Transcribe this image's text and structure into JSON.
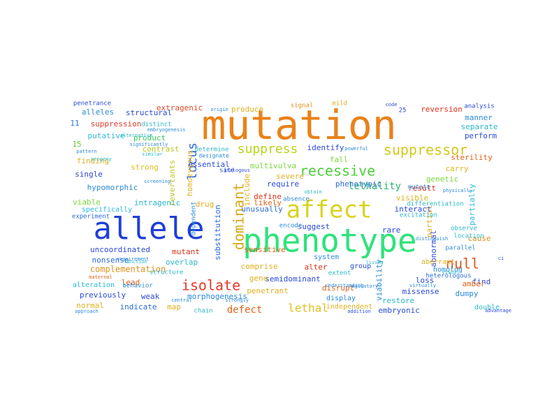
{
  "words": [
    {
      "text": "mutation",
      "color": "#e8821a"
    },
    {
      "text": "phenotype",
      "color": "#2ee37a"
    },
    {
      "text": "allele",
      "color": "#1f3fd8"
    },
    {
      "text": "affect",
      "color": "#d8d41a"
    },
    {
      "text": "suppressor",
      "color": "#d4c81a"
    },
    {
      "text": "suppress",
      "color": "#b8d41a"
    },
    {
      "text": "recessive",
      "color": "#4dcf3a"
    },
    {
      "text": "null",
      "color": "#e0561a"
    },
    {
      "text": "isolate",
      "color": "#e23a2a"
    },
    {
      "text": "dominant",
      "color": "#d8a81a"
    },
    {
      "text": "lethal",
      "color": "#e0c020"
    },
    {
      "text": "locus",
      "color": "#2a6ad8"
    },
    {
      "text": "lethality",
      "color": "#2ab56a"
    },
    {
      "text": "defect",
      "color": "#e0621a"
    },
    {
      "text": "complementation",
      "color": "#e0901a"
    },
    {
      "text": "suppression",
      "color": "#e03a2a"
    },
    {
      "text": "extragenic",
      "color": "#e04a2a"
    },
    {
      "text": "produce",
      "color": "#e0b020"
    },
    {
      "text": "reversion",
      "color": "#e0301a"
    },
    {
      "text": "structural",
      "color": "#2a4ad8"
    },
    {
      "text": "alleles",
      "color": "#2a8ad8"
    },
    {
      "text": "11",
      "color": "#2a7ad8"
    },
    {
      "text": "putative",
      "color": "#2ab8e0"
    },
    {
      "text": "product",
      "color": "#3ac85a"
    },
    {
      "text": "15",
      "color": "#6ac83a"
    },
    {
      "text": "contrast",
      "color": "#b8c820"
    },
    {
      "text": "finding",
      "color": "#e0b020"
    },
    {
      "text": "strong",
      "color": "#d8c020"
    },
    {
      "text": "single",
      "color": "#2a4ad8"
    },
    {
      "text": "hypomorphic",
      "color": "#2a8ad8"
    },
    {
      "text": "intragenic",
      "color": "#2ab8c8"
    },
    {
      "text": "viable",
      "color": "#7ad83a"
    },
    {
      "text": "specifically",
      "color": "#2ab8e0"
    },
    {
      "text": "experiment",
      "color": "#2a6ad8"
    },
    {
      "text": "uncoordinated",
      "color": "#2a4ad8"
    },
    {
      "text": "nonsense",
      "color": "#2a6ad8"
    },
    {
      "text": "previously",
      "color": "#2a4ad8"
    },
    {
      "text": "normal",
      "color": "#e0b020"
    },
    {
      "text": "alteration",
      "color": "#2ab8e0"
    },
    {
      "text": "lead",
      "color": "#e0621a"
    },
    {
      "text": "weak",
      "color": "#2a4ad8"
    },
    {
      "text": "indicate",
      "color": "#2a6ad8"
    },
    {
      "text": "map",
      "color": "#e0b020"
    },
    {
      "text": "chain",
      "color": "#2ab8c8"
    },
    {
      "text": "mutant",
      "color": "#e0301a"
    },
    {
      "text": "overlap",
      "color": "#2ab8c8"
    },
    {
      "text": "morphogenesis",
      "color": "#2a8ad8"
    },
    {
      "text": "homozygous",
      "color": "#e0b020"
    },
    {
      "text": "revertants",
      "color": "#c8c020"
    },
    {
      "text": "essential",
      "color": "#2a4ad8"
    },
    {
      "text": "multivulva",
      "color": "#7ad83a"
    },
    {
      "text": "fall",
      "color": "#7ad83a"
    },
    {
      "text": "require",
      "color": "#2a4ad8"
    },
    {
      "text": "severe",
      "color": "#e0b020"
    },
    {
      "text": "define",
      "color": "#e0301a"
    },
    {
      "text": "unusually",
      "color": "#2a6ad8"
    },
    {
      "text": "sensitive",
      "color": "#e0621a"
    },
    {
      "text": "likely",
      "color": "#e0621a"
    },
    {
      "text": "suggest",
      "color": "#2a4ad8"
    },
    {
      "text": "substitution",
      "color": "#2a6ad8"
    },
    {
      "text": "penetrant",
      "color": "#e0b020"
    },
    {
      "text": "disrupt",
      "color": "#e0621a"
    },
    {
      "text": "missense",
      "color": "#2a4ad8"
    },
    {
      "text": "restore",
      "color": "#2ab8c8"
    },
    {
      "text": "dumpy",
      "color": "#2a8ad8"
    },
    {
      "text": "embryonic",
      "color": "#2a4ad8"
    },
    {
      "text": "viability",
      "color": "#2a8ad8"
    },
    {
      "text": "abnormal",
      "color": "#2a4ad8"
    },
    {
      "text": "find",
      "color": "#2a4ad8"
    },
    {
      "text": "amber",
      "color": "#e0621a"
    },
    {
      "text": "loss",
      "color": "#2a4ad8"
    },
    {
      "text": "cause",
      "color": "#e0901a"
    },
    {
      "text": "rare",
      "color": "#2a4ad8"
    },
    {
      "text": "result",
      "color": "#e0301a"
    },
    {
      "text": "carry",
      "color": "#e0b020"
    },
    {
      "text": "genetic",
      "color": "#7ad83a"
    },
    {
      "text": "partial",
      "color": "#e0b020"
    },
    {
      "text": "partially",
      "color": "#2ab8e0"
    },
    {
      "text": "sterility",
      "color": "#e0621a"
    },
    {
      "text": "manner",
      "color": "#2a8ad8"
    },
    {
      "text": "separate",
      "color": "#2ab8c8"
    },
    {
      "text": "perform",
      "color": "#2a4ad8"
    },
    {
      "text": "analysis",
      "color": "#2a4ad8"
    },
    {
      "text": "semidominant",
      "color": "#2a4ad8"
    },
    {
      "text": "gene",
      "color": "#e0b020"
    },
    {
      "text": "alter",
      "color": "#e0301a"
    },
    {
      "text": "comprise",
      "color": "#e0b020"
    },
    {
      "text": "include",
      "color": "#e0b020"
    },
    {
      "text": "drug",
      "color": "#e0b020"
    },
    {
      "text": "phenotypic",
      "color": "#2a6ad8"
    },
    {
      "text": "visible",
      "color": "#e0b020"
    },
    {
      "text": "interact",
      "color": "#2a4ad8"
    },
    {
      "text": "identify",
      "color": "#2a4ad8"
    },
    {
      "text": "signal",
      "color": "#e0901a"
    },
    {
      "text": "penetrance",
      "color": "#2a4ad8"
    },
    {
      "text": "distinct",
      "color": "#2ab8c8"
    },
    {
      "text": "system",
      "color": "#2a8ad8"
    },
    {
      "text": "group",
      "color": "#2a4ad8"
    },
    {
      "text": "display",
      "color": "#2a8ad8"
    },
    {
      "text": "independent",
      "color": "#e0b020"
    },
    {
      "text": "aberrant",
      "color": "#e0b020"
    },
    {
      "text": "homolog",
      "color": "#2a8ad8"
    },
    {
      "text": "heterologous",
      "color": "#2a6ad8"
    },
    {
      "text": "double",
      "color": "#2ab8c8"
    },
    {
      "text": "parallel",
      "color": "#2a8ad8"
    },
    {
      "text": "location",
      "color": "#2ab8c8"
    },
    {
      "text": "observe",
      "color": "#2ab8c8"
    },
    {
      "text": "differentiation",
      "color": "#2ab8c8"
    },
    {
      "text": "excitation",
      "color": "#2ab8c8"
    },
    {
      "text": "structure",
      "color": "#2ab8c8"
    },
    {
      "text": "dependent",
      "color": "#2a8ad8"
    },
    {
      "text": "absence",
      "color": "#2a8ad8"
    },
    {
      "text": "encode",
      "color": "#2a8ad8"
    },
    {
      "text": "behavior",
      "color": "#2a8ad8"
    },
    {
      "text": "embryogenesis",
      "color": "#2a8ad8"
    },
    {
      "text": "alternative",
      "color": "#2ab8c8"
    },
    {
      "text": "requirement",
      "color": "#2a8ad8"
    },
    {
      "text": "function",
      "color": "#2ab8c8"
    },
    {
      "text": "maternal",
      "color": "#e0621a"
    },
    {
      "text": "approach",
      "color": "#2a8ad8"
    },
    {
      "text": "addition",
      "color": "#2a4ad8"
    },
    {
      "text": "advantage",
      "color": "#2a4ad8"
    },
    {
      "text": "site",
      "color": "#2a4ad8"
    },
    {
      "text": "analogous",
      "color": "#2a4ad8"
    },
    {
      "text": "determine",
      "color": "#2ab8c8"
    },
    {
      "text": "designate",
      "color": "#2a8ad8"
    },
    {
      "text": "obtain",
      "color": "#2ab8c8"
    },
    {
      "text": "mutate",
      "color": "#2a8ad8"
    },
    {
      "text": "extent",
      "color": "#2ab8c8"
    },
    {
      "text": "living",
      "color": "#2ab8c8"
    },
    {
      "text": "visual",
      "color": "#2ab8c8"
    },
    {
      "text": "virtually",
      "color": "#2a8ad8"
    },
    {
      "text": "central",
      "color": "#2a8ad8"
    },
    {
      "text": "strongly",
      "color": "#2a8ad8"
    },
    {
      "text": "regulatory",
      "color": "#2a8ad8"
    },
    {
      "text": "mild",
      "color": "#e0b020"
    },
    {
      "text": "25",
      "color": "#2a4ad8"
    },
    {
      "text": "code",
      "color": "#2a4ad8"
    },
    {
      "text": "origin",
      "color": "#2a8ad8"
    },
    {
      "text": "pattern",
      "color": "#2a8ad8"
    },
    {
      "text": "progeny",
      "color": "#2ab8c8"
    },
    {
      "text": "significantly",
      "color": "#2a8ad8"
    },
    {
      "text": "similar",
      "color": "#2ab8c8"
    },
    {
      "text": "screening",
      "color": "#2a8ad8"
    },
    {
      "text": "powerful",
      "color": "#2a8ad8"
    },
    {
      "text": "ci",
      "color": "#2a4ad8"
    },
    {
      "text": "physically",
      "color": "#2a8ad8"
    },
    {
      "text": "distinguish",
      "color": "#2a8ad8"
    },
    {
      "text": "understanding",
      "color": "#2a8ad8"
    }
  ]
}
